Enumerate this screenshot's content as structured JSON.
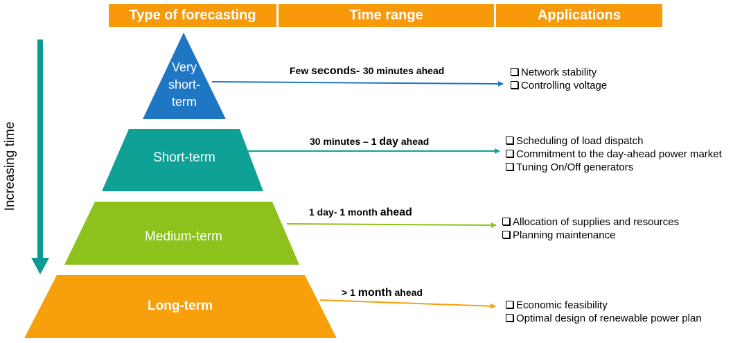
{
  "header": {
    "col1": "Type of forecasting",
    "col2": "Time range",
    "col3": "Applications",
    "color": "#f79a0a"
  },
  "axis": {
    "label": "Increasing time",
    "color": "#0b9a8f"
  },
  "tiers": [
    {
      "label_lines": [
        "Very",
        "short-",
        "term"
      ],
      "color": "#1f77c4",
      "range": {
        "a": "Few ",
        "b": "seconds- ",
        "c": "30 minutes ahead"
      },
      "applications": [
        "Network stability",
        "Controlling voltage"
      ]
    },
    {
      "label_lines": [
        "Short-term"
      ],
      "color": "#0fa196",
      "range": {
        "a": "30 minutes – 1 ",
        "b": "day",
        "c": " ahead"
      },
      "applications": [
        "Scheduling of load dispatch",
        "Commitment to the day-ahead power market",
        "Tuning On/Off generators"
      ]
    },
    {
      "label_lines": [
        "Medium-term"
      ],
      "color": "#8cc21b",
      "range": {
        "a": "1 day- 1 month ",
        "b": "ahead",
        "c": ""
      },
      "applications": [
        "Allocation of supplies and resources",
        "Planning maintenance"
      ]
    },
    {
      "label_lines": [
        "Long-term"
      ],
      "color": "#f7a00c",
      "range": {
        "a": "> 1 ",
        "b": "month",
        "c": " ahead"
      },
      "applications": [
        "Economic feasibility",
        "Optimal design of renewable power plan"
      ]
    }
  ]
}
